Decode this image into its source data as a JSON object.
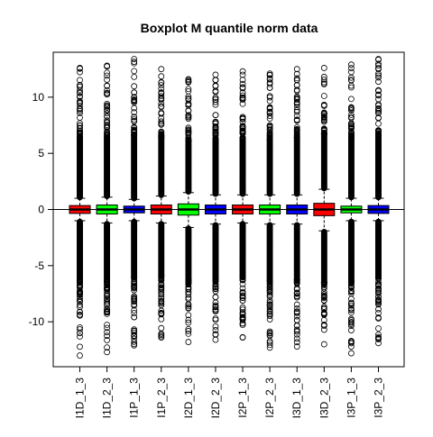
{
  "chart_data": {
    "type": "boxplot",
    "title": "Boxplot M quantile norm data",
    "xlabel": "",
    "ylabel": "",
    "ylim": [
      -14,
      14
    ],
    "yticks": [
      -10,
      -5,
      0,
      5,
      10
    ],
    "reference_line": 0,
    "categories": [
      "I1D_1_3",
      "I1D_2_3",
      "I1P_1_3",
      "I1P_2_3",
      "I2D_1_3",
      "I2D_2_3",
      "I2P_1_3",
      "I2P_2_3",
      "I3D_1_3",
      "I3D_2_3",
      "I3P_1_3",
      "I3P_2_3"
    ],
    "colors": [
      "#ff0000",
      "#00ff00",
      "#0000ff",
      "#ff0000",
      "#00ff00",
      "#0000ff",
      "#ff0000",
      "#00ff00",
      "#0000ff",
      "#ff0000",
      "#00ff00",
      "#0000ff"
    ],
    "series": [
      {
        "q1": -0.35,
        "median": 0.0,
        "q3": 0.35,
        "whisker_low": -1.0,
        "whisker_high": 1.0,
        "outlier_min": -13.0,
        "outlier_max": 12.6
      },
      {
        "q1": -0.4,
        "median": 0.0,
        "q3": 0.4,
        "whisker_low": -1.2,
        "whisker_high": 1.1,
        "outlier_min": -12.7,
        "outlier_max": 12.8
      },
      {
        "q1": -0.3,
        "median": 0.0,
        "q3": 0.3,
        "whisker_low": -1.0,
        "whisker_high": 0.9,
        "outlier_min": -12.1,
        "outlier_max": 13.4
      },
      {
        "q1": -0.4,
        "median": 0.0,
        "q3": 0.4,
        "whisker_low": -1.2,
        "whisker_high": 1.2,
        "outlier_min": -11.4,
        "outlier_max": 12.5
      },
      {
        "q1": -0.5,
        "median": 0.0,
        "q3": 0.5,
        "whisker_low": -1.6,
        "whisker_high": 1.5,
        "outlier_min": -11.8,
        "outlier_max": 11.6
      },
      {
        "q1": -0.4,
        "median": 0.0,
        "q3": 0.4,
        "whisker_low": -1.3,
        "whisker_high": 1.3,
        "outlier_min": -11.6,
        "outlier_max": 12.0
      },
      {
        "q1": -0.4,
        "median": 0.0,
        "q3": 0.4,
        "whisker_low": -1.2,
        "whisker_high": 1.3,
        "outlier_min": -11.4,
        "outlier_max": 12.3
      },
      {
        "q1": -0.4,
        "median": 0.0,
        "q3": 0.4,
        "whisker_low": -1.3,
        "whisker_high": 1.3,
        "outlier_min": -12.3,
        "outlier_max": 12.1
      },
      {
        "q1": -0.4,
        "median": 0.0,
        "q3": 0.4,
        "whisker_low": -1.3,
        "whisker_high": 1.3,
        "outlier_min": -12.2,
        "outlier_max": 12.5
      },
      {
        "q1": -0.55,
        "median": 0.0,
        "q3": 0.55,
        "whisker_low": -1.9,
        "whisker_high": 1.8,
        "outlier_min": -12.0,
        "outlier_max": 12.6
      },
      {
        "q1": -0.3,
        "median": 0.0,
        "q3": 0.3,
        "whisker_low": -1.0,
        "whisker_high": 1.0,
        "outlier_min": -12.8,
        "outlier_max": 12.9
      },
      {
        "q1": -0.35,
        "median": 0.0,
        "q3": 0.35,
        "whisker_low": -1.0,
        "whisker_high": 1.0,
        "outlier_min": -11.9,
        "outlier_max": 13.4
      }
    ],
    "grid": false,
    "legend": "none"
  }
}
